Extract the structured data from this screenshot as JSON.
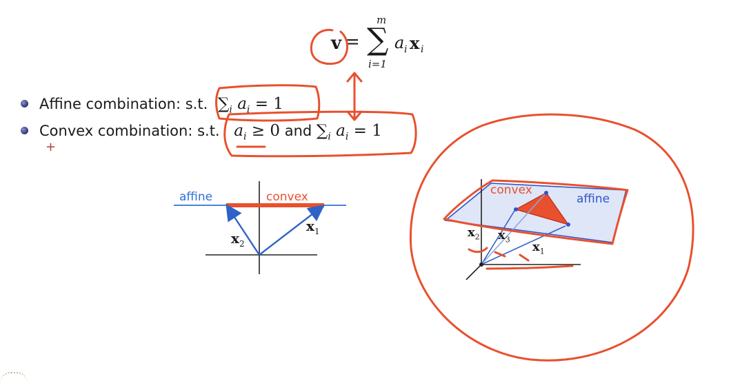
{
  "formula": {
    "lhs": "v",
    "eq": "=",
    "sum": "∑",
    "upper": "m",
    "lower": "i=1",
    "term_a": "a",
    "term_a_sub": "i",
    "term_x": "x",
    "term_x_sub": "i"
  },
  "bullets": [
    {
      "text": "Affine combination: s.t.",
      "cond_sum": "∑",
      "cond_sub": "i",
      "cond_rest": "a",
      "cond_rest_sub": "i",
      "cond_eq": " = 1"
    },
    {
      "text": "Convex combination: s.t.",
      "c1_a": "a",
      "c1_sub": "i",
      "c1_rest": " ≥ 0",
      "and": " and ",
      "cond_sum": "∑",
      "cond_sub": "i",
      "cond_rest": "a",
      "cond_rest_sub": "i",
      "cond_eq": " = 1"
    }
  ],
  "plus_mark": "+",
  "figure_2d": {
    "affine_label": "affine",
    "convex_label": "convex",
    "x1": "x",
    "x1_sub": "1",
    "x2": "x",
    "x2_sub": "2",
    "colors": {
      "affine": "#2f6fd6",
      "convex": "#e8502e",
      "vector": "#2f62c8"
    }
  },
  "figure_3d": {
    "affine_label": "affine",
    "convex_label": "convex",
    "x1": "x",
    "x1_sub": "1",
    "x2": "x",
    "x2_sub": "2",
    "x3": "x",
    "x3_sub": "3",
    "colors": {
      "plane": "#dfe6f8",
      "plane_edge": "#2f55c8",
      "triangle": "#e8502e"
    }
  },
  "annotation_color": "#e8502e"
}
